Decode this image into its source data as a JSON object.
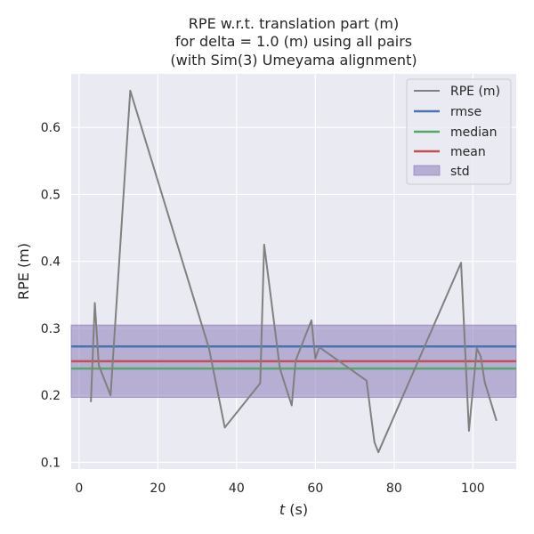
{
  "chart_data": {
    "type": "line",
    "title_lines": [
      "RPE w.r.t. translation part (m)",
      "for delta = 1.0 (m) using all pairs",
      "(with Sim(3) Umeyama alignment)"
    ],
    "xlabel_italic": "t",
    "xlabel_rest": " (s)",
    "ylabel": "RPE (m)",
    "xlim": [
      -2,
      111
    ],
    "ylim": [
      0.09,
      0.68
    ],
    "x_ticks": [
      0,
      20,
      40,
      60,
      80,
      100
    ],
    "x_tick_labels": [
      "0",
      "20",
      "40",
      "60",
      "80",
      "100"
    ],
    "y_ticks": [
      0.1,
      0.2,
      0.3,
      0.4,
      0.5,
      0.6
    ],
    "y_tick_labels": [
      "0.1",
      "0.2",
      "0.3",
      "0.4",
      "0.5",
      "0.6"
    ],
    "grid": true,
    "legend_position": "top-right",
    "series": [
      {
        "name": "RPE (m)",
        "color": "#808080",
        "x": [
          3,
          4,
          5,
          8,
          13,
          33,
          37,
          46,
          47,
          51,
          54,
          55,
          59,
          60,
          61,
          73,
          75,
          76,
          97,
          99,
          101,
          102,
          103,
          106
        ],
        "y": [
          0.19,
          0.338,
          0.245,
          0.2,
          0.655,
          0.27,
          0.152,
          0.218,
          0.425,
          0.24,
          0.185,
          0.252,
          0.312,
          0.255,
          0.272,
          0.222,
          0.13,
          0.115,
          0.398,
          0.147,
          0.27,
          0.258,
          0.22,
          0.162
        ]
      }
    ],
    "hlines": [
      {
        "name": "rmse",
        "value": 0.273,
        "color": "#4c72b0"
      },
      {
        "name": "median",
        "value": 0.24,
        "color": "#55a868"
      },
      {
        "name": "mean",
        "value": 0.251,
        "color": "#c44e52"
      }
    ],
    "band": {
      "name": "std",
      "low": 0.197,
      "high": 0.305,
      "color": "#8172b3"
    },
    "legend": [
      "RPE (m)",
      "rmse",
      "median",
      "mean",
      "std"
    ]
  }
}
